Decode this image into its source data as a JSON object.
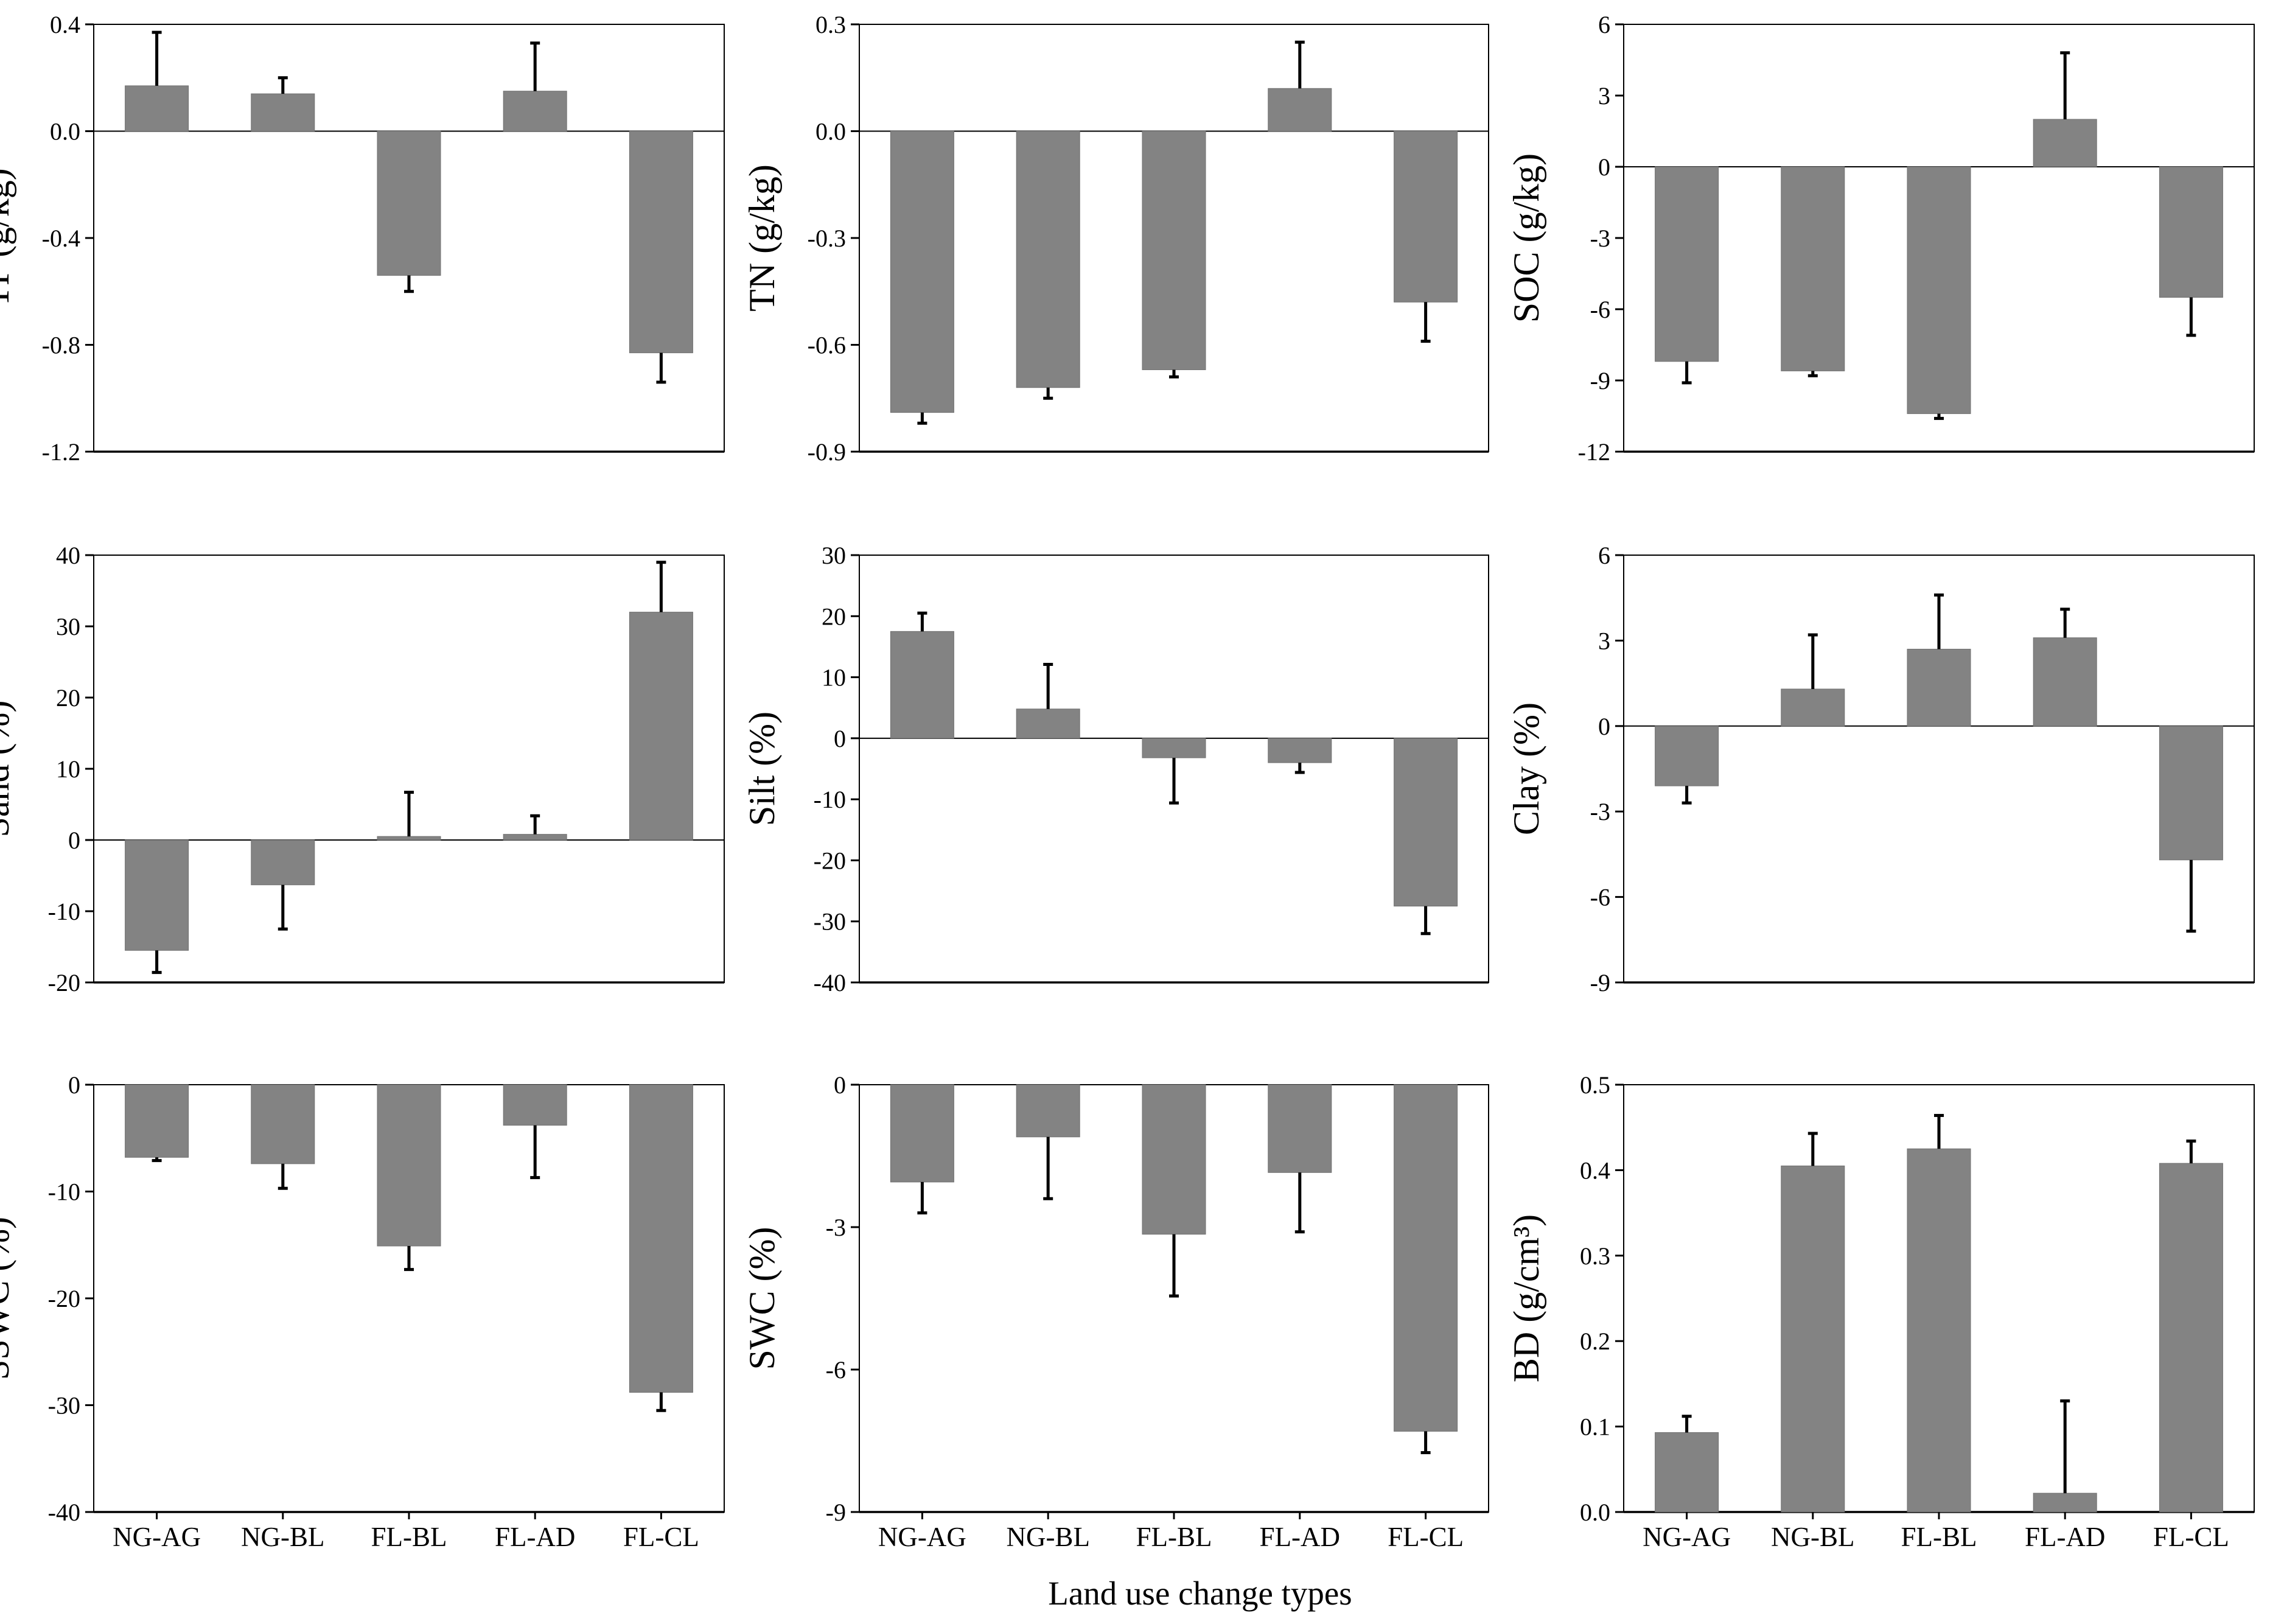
{
  "xlabel": "Land use change types",
  "chart_data": [
    {
      "type": "bar",
      "ylabel": "TP (g/kg)",
      "ylim": [
        -1.2,
        0.4
      ],
      "yticks": [
        "-1.2",
        "-0.8",
        "-0.4",
        "0.0",
        "0.4"
      ],
      "categories": [
        "NG-AG",
        "NG-BL",
        "FL-BL",
        "FL-AD",
        "FL-CL"
      ],
      "values": [
        0.17,
        0.14,
        -0.54,
        0.15,
        -0.83
      ],
      "errors": [
        0.2,
        0.06,
        0.06,
        0.18,
        0.11
      ]
    },
    {
      "type": "bar",
      "ylabel": "TN (g/kg)",
      "ylim": [
        -0.9,
        0.3
      ],
      "yticks": [
        "-0.9",
        "-0.6",
        "-0.3",
        "0.0",
        "0.3"
      ],
      "categories": [
        "NG-AG",
        "NG-BL",
        "FL-BL",
        "FL-AD",
        "FL-CL"
      ],
      "values": [
        -0.79,
        -0.72,
        -0.67,
        0.12,
        -0.48
      ],
      "errors": [
        0.03,
        0.03,
        0.02,
        0.13,
        0.11
      ]
    },
    {
      "type": "bar",
      "ylabel": "SOC (g/kg)",
      "ylim": [
        -12,
        6
      ],
      "yticks": [
        "-12",
        "-9",
        "-6",
        "-3",
        "0",
        "3",
        "6"
      ],
      "categories": [
        "NG-AG",
        "NG-BL",
        "FL-BL",
        "FL-AD",
        "FL-CL"
      ],
      "values": [
        -8.2,
        -8.6,
        -10.4,
        2.0,
        -5.5
      ],
      "errors": [
        0.9,
        0.2,
        0.2,
        2.8,
        1.6
      ]
    },
    {
      "type": "bar",
      "ylabel": "Sand (%)",
      "ylim": [
        -20,
        40
      ],
      "yticks": [
        "-20",
        "-10",
        "0",
        "10",
        "20",
        "30",
        "40"
      ],
      "categories": [
        "NG-AG",
        "NG-BL",
        "FL-BL",
        "FL-AD",
        "FL-CL"
      ],
      "values": [
        -15.5,
        -6.3,
        0.5,
        0.8,
        32.0
      ],
      "errors": [
        3.1,
        6.2,
        6.2,
        2.6,
        7.0
      ]
    },
    {
      "type": "bar",
      "ylabel": "Silt (%)",
      "ylim": [
        -40,
        30
      ],
      "yticks": [
        "-40",
        "-30",
        "-20",
        "-10",
        "0",
        "10",
        "20",
        "30"
      ],
      "categories": [
        "NG-AG",
        "NG-BL",
        "FL-BL",
        "FL-AD",
        "FL-CL"
      ],
      "values": [
        17.5,
        4.8,
        -3.2,
        -4.0,
        -27.5
      ],
      "errors": [
        3.0,
        7.3,
        7.4,
        1.6,
        4.5
      ]
    },
    {
      "type": "bar",
      "ylabel": "Clay (%)",
      "ylim": [
        -9,
        6
      ],
      "yticks": [
        "-9",
        "-6",
        "-3",
        "0",
        "3",
        "6"
      ],
      "categories": [
        "NG-AG",
        "NG-BL",
        "FL-BL",
        "FL-AD",
        "FL-CL"
      ],
      "values": [
        -2.1,
        1.3,
        2.7,
        3.1,
        -4.7
      ],
      "errors": [
        0.6,
        1.9,
        1.9,
        1.0,
        2.5
      ]
    },
    {
      "type": "bar",
      "ylabel": "SSWC (%)",
      "ylim": [
        -40,
        0
      ],
      "yticks": [
        "-40",
        "-30",
        "-20",
        "-10",
        "0"
      ],
      "categories": [
        "NG-AG",
        "NG-BL",
        "FL-BL",
        "FL-AD",
        "FL-CL"
      ],
      "values": [
        -6.8,
        -7.4,
        -15.1,
        -3.8,
        -28.8
      ],
      "errors": [
        0.3,
        2.3,
        2.2,
        4.9,
        1.7
      ]
    },
    {
      "type": "bar",
      "ylabel": "SWC (%)",
      "ylim": [
        -9,
        0
      ],
      "yticks": [
        "-9",
        "-6",
        "-3",
        "0"
      ],
      "categories": [
        "NG-AG",
        "NG-BL",
        "FL-BL",
        "FL-AD",
        "FL-CL"
      ],
      "values": [
        -2.05,
        -1.1,
        -3.15,
        -1.85,
        -7.3
      ],
      "errors": [
        0.65,
        1.3,
        1.3,
        1.25,
        0.45
      ]
    },
    {
      "type": "bar",
      "ylabel": "BD (g/cm³)",
      "ylim": [
        0.0,
        0.5
      ],
      "yticks": [
        "0.0",
        "0.1",
        "0.2",
        "0.3",
        "0.4",
        "0.5"
      ],
      "categories": [
        "NG-AG",
        "NG-BL",
        "FL-BL",
        "FL-AD",
        "FL-CL"
      ],
      "values": [
        0.093,
        0.405,
        0.425,
        0.022,
        0.408
      ],
      "errors": [
        0.019,
        0.038,
        0.039,
        0.108,
        0.026
      ]
    }
  ]
}
